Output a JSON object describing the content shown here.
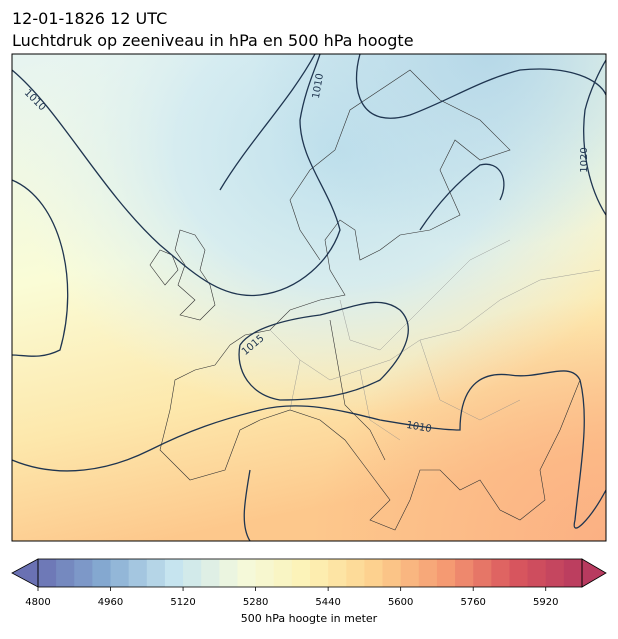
{
  "header": {
    "date": "12-01-1826 12 UTC",
    "title": "Luchtdruk op zeeniveau in hPa en 500 hPa hoogte"
  },
  "map": {
    "isobar_labels": [
      1010,
      1010,
      1015,
      1010,
      1020
    ]
  },
  "colorbar": {
    "label": "500 hPa hoogte in meter",
    "lim": [
      4800,
      6000
    ],
    "step": 40,
    "ticks": [
      4800,
      4960,
      5120,
      5280,
      5440,
      5600,
      5760,
      5920
    ],
    "colors": [
      "#6a71b3",
      "#86acd2",
      "#c6e4ef",
      "#f4f9dc",
      "#fdf2b4",
      "#fdcf8c",
      "#f59a72",
      "#d9575e",
      "#b83a5f"
    ]
  }
}
